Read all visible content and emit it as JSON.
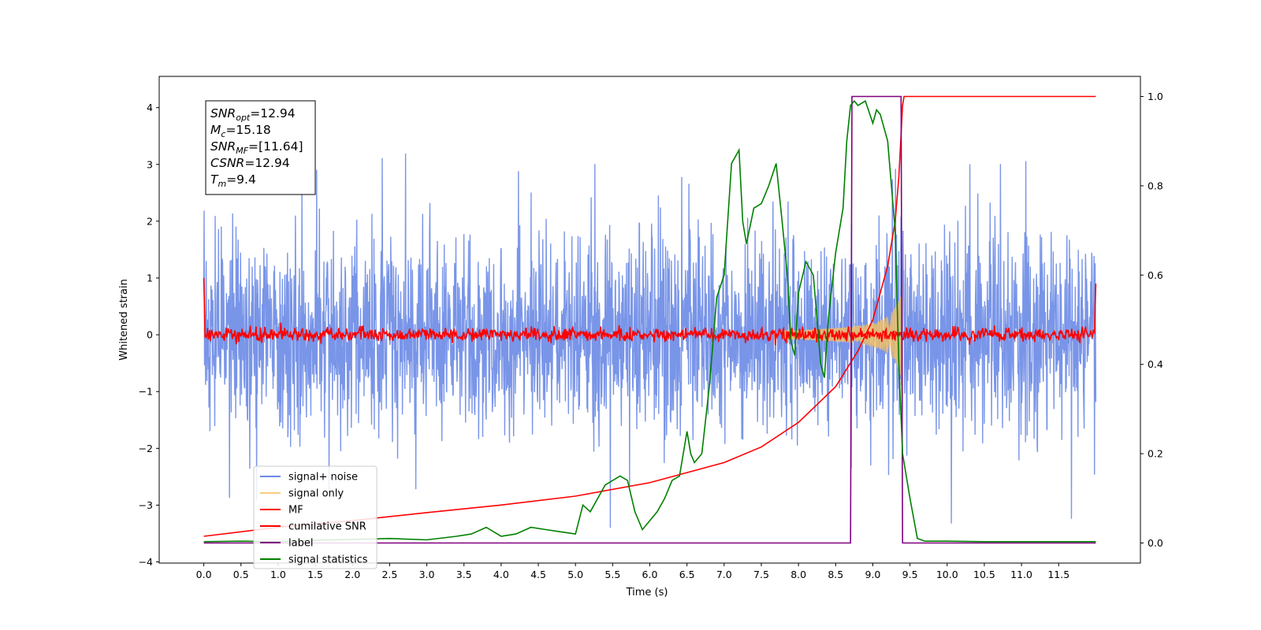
{
  "chart_data": {
    "type": "line",
    "xlabel": "Time (s)",
    "ylabel": "Whitened strain",
    "xlim": [
      -0.6,
      12.6
    ],
    "ylim": [
      -4.02,
      4.55
    ],
    "y2lim": [
      -0.045,
      1.045
    ],
    "x_ticks": [
      0.0,
      0.5,
      1.0,
      1.5,
      2.0,
      2.5,
      3.0,
      3.5,
      4.0,
      4.5,
      5.0,
      5.5,
      6.0,
      6.5,
      7.0,
      7.5,
      8.0,
      8.5,
      9.0,
      9.5,
      10.0,
      10.5,
      11.0,
      11.5
    ],
    "x_tick_labels": [
      "0.0",
      "0.5",
      "1.0",
      "1.5",
      "2.0",
      "2.5",
      "3.0",
      "3.5",
      "4.0",
      "4.5",
      "5.0",
      "5.5",
      "6.0",
      "6.5",
      "7.0",
      "7.5",
      "8.0",
      "8.5",
      "9.0",
      "9.5",
      "10.0",
      "10.5",
      "11.0",
      "11.5"
    ],
    "y_ticks": [
      -4,
      -3,
      -2,
      -1,
      0,
      1,
      2,
      3,
      4
    ],
    "y_tick_labels": [
      "−4",
      "−3",
      "−2",
      "−1",
      "0",
      "1",
      "2",
      "3",
      "4"
    ],
    "y2_ticks": [
      0.0,
      0.2,
      0.4,
      0.6,
      0.8,
      1.0
    ],
    "y2_tick_labels": [
      "0.0",
      "0.2",
      "0.4",
      "0.6",
      "0.8",
      "1.0"
    ],
    "legend_placement": "lower-left",
    "grid": false,
    "series": [
      {
        "name": "signal+ noise",
        "axis": "left",
        "color": "#6a89e6",
        "description": "whitened noise with amplitude between about −2.5 and +2.6, occasional spikes to ±3.3, plus injected chirp",
        "t_range": [
          0.0,
          12.0
        ],
        "envelope": [
          -2.5,
          2.6
        ]
      },
      {
        "name": "signal only",
        "axis": "left",
        "color": "#f5c160",
        "description": "chirp growing from 0 to about ±1.1 between 8 s and 9.4 s",
        "t_range": [
          7.8,
          9.4
        ],
        "peak_amplitude": 1.1
      },
      {
        "name": "MF",
        "axis": "left",
        "color": "#ff0000",
        "description": "matched filter output, small noise around 0 with edges near ±1 at t=0 and t=12",
        "t_range": [
          0.0,
          12.0
        ]
      },
      {
        "name": "cumilative SNR",
        "axis": "right",
        "color": "#ff0000",
        "x": [
          0.0,
          1.0,
          2.0,
          3.0,
          4.0,
          5.0,
          6.0,
          7.0,
          7.5,
          8.0,
          8.5,
          8.8,
          9.0,
          9.2,
          9.3,
          9.35,
          9.4,
          9.42,
          12.0
        ],
        "values": [
          0.015,
          0.035,
          0.05,
          0.068,
          0.085,
          0.105,
          0.135,
          0.18,
          0.215,
          0.27,
          0.35,
          0.43,
          0.5,
          0.62,
          0.72,
          0.82,
          0.98,
          1.0,
          1.0
        ]
      },
      {
        "name": "label",
        "axis": "right",
        "color": "#800080",
        "x": [
          0.0,
          8.7,
          8.72,
          9.38,
          9.4,
          12.0
        ],
        "values": [
          0.0,
          0.0,
          1.0,
          1.0,
          0.0,
          0.0
        ]
      },
      {
        "name": "signal statistics",
        "axis": "right",
        "color": "#008000",
        "x": [
          0.0,
          0.5,
          1.0,
          1.5,
          2.0,
          2.5,
          3.0,
          3.4,
          3.6,
          3.8,
          4.0,
          4.2,
          4.4,
          4.6,
          4.8,
          5.0,
          5.1,
          5.2,
          5.4,
          5.6,
          5.7,
          5.8,
          5.9,
          6.0,
          6.1,
          6.2,
          6.3,
          6.4,
          6.5,
          6.55,
          6.6,
          6.7,
          6.8,
          6.9,
          7.0,
          7.1,
          7.2,
          7.25,
          7.3,
          7.4,
          7.5,
          7.6,
          7.7,
          7.78,
          7.85,
          7.9,
          7.95,
          8.0,
          8.1,
          8.2,
          8.25,
          8.3,
          8.35,
          8.4,
          8.5,
          8.6,
          8.65,
          8.7,
          8.75,
          8.8,
          8.9,
          9.0,
          9.05,
          9.1,
          9.2,
          9.3,
          9.35,
          9.4,
          9.5,
          9.6,
          9.7,
          10.0,
          10.5,
          11.0,
          12.0
        ],
        "values": [
          0.003,
          0.004,
          0.003,
          0.006,
          0.008,
          0.01,
          0.007,
          0.015,
          0.02,
          0.035,
          0.015,
          0.02,
          0.035,
          0.03,
          0.025,
          0.02,
          0.085,
          0.07,
          0.13,
          0.15,
          0.14,
          0.07,
          0.03,
          0.05,
          0.07,
          0.1,
          0.14,
          0.15,
          0.25,
          0.2,
          0.18,
          0.2,
          0.35,
          0.55,
          0.6,
          0.85,
          0.88,
          0.72,
          0.67,
          0.75,
          0.76,
          0.8,
          0.85,
          0.72,
          0.6,
          0.45,
          0.42,
          0.56,
          0.63,
          0.6,
          0.5,
          0.4,
          0.37,
          0.5,
          0.65,
          0.75,
          0.9,
          0.98,
          0.99,
          0.98,
          0.99,
          0.94,
          0.97,
          0.96,
          0.9,
          0.7,
          0.4,
          0.2,
          0.1,
          0.01,
          0.004,
          0.004,
          0.003,
          0.003,
          0.003
        ]
      }
    ],
    "annotation_lines": [
      {
        "main": "SNR",
        "sub": "opt",
        "value": "=12.94"
      },
      {
        "main": "M",
        "sub": "c",
        "value": "=15.18"
      },
      {
        "main": "SNR",
        "sub": "MF",
        "value": "=[11.64]"
      },
      {
        "main": "CSNR",
        "sub": "",
        "value": "=12.94"
      },
      {
        "main": "T",
        "sub": "m",
        "value": "=9.4"
      }
    ]
  }
}
